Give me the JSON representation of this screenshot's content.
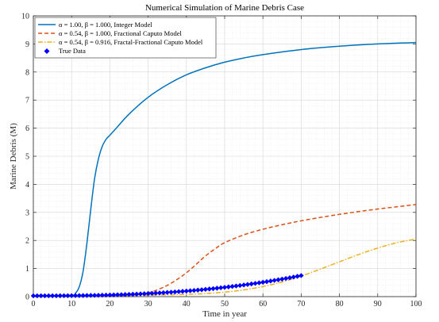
{
  "chart_data": {
    "type": "line",
    "title": "Numerical Simulation of Marine Debris Case",
    "xlabel": "Time in year",
    "ylabel": "Marine Debris (M)",
    "xlim": [
      0,
      100
    ],
    "ylim": [
      0,
      10
    ],
    "xticks": [
      0,
      10,
      20,
      30,
      40,
      50,
      60,
      70,
      80,
      90,
      100
    ],
    "yticks": [
      0,
      1,
      2,
      3,
      4,
      5,
      6,
      7,
      8,
      9,
      10
    ],
    "grid": true,
    "legend_position": "top-left",
    "series": [
      {
        "name": "α = 1.00, β = 1.000, Integer Model",
        "style": "solid",
        "color": "#0072BD",
        "x": [
          0,
          10,
          11,
          12,
          13,
          14,
          15,
          16,
          17,
          18,
          19,
          20,
          22,
          25,
          30,
          35,
          40,
          45,
          50,
          55,
          60,
          70,
          80,
          90,
          100
        ],
        "y": [
          0.03,
          0.05,
          0.12,
          0.35,
          0.9,
          1.9,
          3.1,
          4.2,
          4.9,
          5.35,
          5.6,
          5.75,
          6.05,
          6.5,
          7.1,
          7.55,
          7.9,
          8.15,
          8.35,
          8.5,
          8.62,
          8.8,
          8.92,
          9.0,
          9.05
        ]
      },
      {
        "name": "α = 0.54, β = 1.000, Fractional Caputo Model",
        "style": "dashed",
        "color": "#D95319",
        "x": [
          0,
          10,
          20,
          25,
          28,
          30,
          32,
          35,
          38,
          40,
          42,
          45,
          48,
          50,
          55,
          60,
          65,
          70,
          75,
          80,
          85,
          90,
          95,
          100
        ],
        "y": [
          0.02,
          0.02,
          0.03,
          0.05,
          0.09,
          0.14,
          0.22,
          0.4,
          0.65,
          0.85,
          1.08,
          1.45,
          1.75,
          1.92,
          2.2,
          2.4,
          2.56,
          2.7,
          2.82,
          2.93,
          3.03,
          3.12,
          3.2,
          3.28
        ]
      },
      {
        "name": "α = 0.54, β = 0.916, Fractal-Fractional Caputo Model",
        "style": "dashdot",
        "color": "#EDB120",
        "x": [
          0,
          10,
          20,
          30,
          40,
          45,
          50,
          55,
          60,
          65,
          70,
          75,
          80,
          85,
          90,
          95,
          100
        ],
        "y": [
          0.02,
          0.02,
          0.03,
          0.05,
          0.08,
          0.11,
          0.16,
          0.24,
          0.36,
          0.52,
          0.73,
          0.98,
          1.24,
          1.5,
          1.73,
          1.92,
          2.05
        ]
      },
      {
        "name": "True Data",
        "style": "markers",
        "color": "#0000FF",
        "x_start": 0,
        "x_end": 70,
        "count": 71,
        "y_model": "y = 0.03 + 0.72 * (x / 70)^2.6"
      }
    ]
  }
}
